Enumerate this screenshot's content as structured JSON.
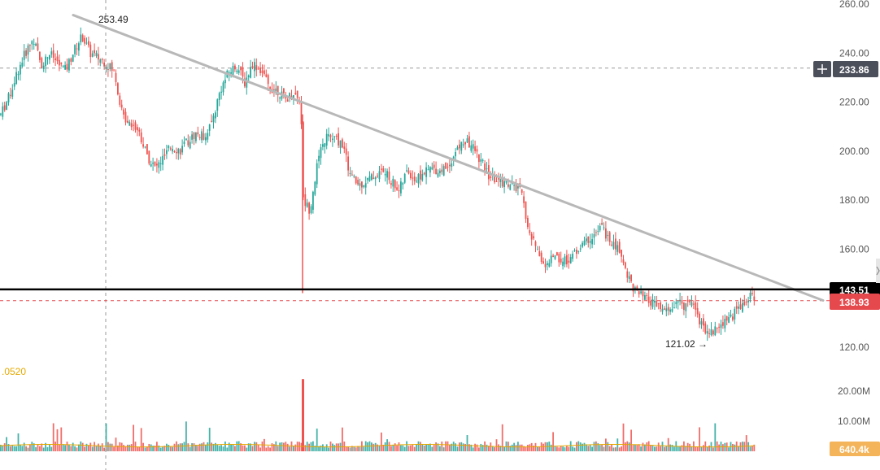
{
  "colors": {
    "up": "#26a69a",
    "down": "#ef5350",
    "trendline": "#b8b8b8",
    "support_line": "#000000",
    "last_price_badge": "#e5484d",
    "crosshair_badge": "#4b4f5a",
    "volume_badge": "#f3b45a",
    "indicator_text": "#e6a900",
    "grid_dash": "#c0c0c0"
  },
  "icons": {
    "crosshair_add": "plus-icon",
    "scroll_handle": "right-chevron-icon"
  },
  "price_axis": {
    "ticks": [
      "260.00",
      "240.00",
      "220.00",
      "200.00",
      "180.00",
      "160.00",
      "140.00",
      "120.00"
    ],
    "tick_values": [
      260,
      240,
      220,
      200,
      180,
      160,
      140,
      120
    ]
  },
  "volume_axis": {
    "ticks": [
      "20.00M",
      "10.00M"
    ],
    "tick_values": [
      20000000,
      10000000
    ]
  },
  "badges": {
    "crosshair_price": "233.86",
    "support_price": "143.51",
    "last_price": "138.93",
    "volume_last": "640.4k"
  },
  "annotations": {
    "high_label": "253.49",
    "low_label": "121.02 →",
    "indicator_value": ".0520"
  },
  "chart_data": {
    "type": "line",
    "title": "",
    "ylabel": "",
    "xlabel": "",
    "ylim": [
      115,
      262
    ],
    "grid": false,
    "series": [
      {
        "style": "candlestick-approx",
        "x": [
          0,
          10,
          20,
          30,
          40,
          50,
          60,
          70,
          80,
          90,
          100,
          110,
          120,
          130,
          140,
          150,
          160,
          170,
          180,
          190,
          200,
          210,
          220,
          230,
          240,
          250,
          260,
          270,
          280,
          290,
          300,
          310,
          320,
          330,
          340,
          350,
          360,
          369,
          372,
          380,
          390,
          400,
          410,
          420,
          430,
          440,
          450,
          460,
          470,
          480,
          490,
          500,
          510,
          520,
          530,
          540,
          550,
          560,
          570,
          580,
          590,
          600,
          610,
          620,
          630,
          640,
          650,
          660,
          670,
          680,
          690,
          700,
          710,
          720,
          730,
          740,
          750,
          760,
          770,
          780,
          790,
          800,
          810,
          820,
          830,
          840,
          850,
          860,
          870,
          880,
          890,
          900,
          910,
          920,
          928
        ],
        "y": [
          215,
          222,
          232,
          240,
          246,
          235,
          240,
          236,
          233,
          241,
          247,
          240,
          238,
          236,
          232,
          214,
          212,
          208,
          198,
          193,
          197,
          202,
          200,
          204,
          207,
          206,
          212,
          225,
          232,
          235,
          228,
          236,
          233,
          226,
          225,
          221,
          224,
          220,
          180,
          176,
          196,
          206,
          205,
          203,
          190,
          186,
          188,
          190,
          192,
          188,
          184,
          192,
          188,
          191,
          193,
          192,
          194,
          200,
          204,
          202,
          196,
          190,
          188,
          187,
          186,
          183,
          166,
          160,
          152,
          158,
          155,
          156,
          160,
          163,
          166,
          169,
          162,
          160,
          150,
          143,
          140,
          138,
          136,
          134,
          138,
          137,
          140,
          130,
          126,
          127,
          131,
          133,
          137,
          140,
          141
        ]
      }
    ],
    "high": 253.49,
    "low": 121.02,
    "trendline": {
      "from": {
        "x": 90,
        "y": 255.5
      },
      "to": {
        "x": 1012,
        "y": 139
      }
    },
    "support_level": 143.51,
    "crosshair_level": 233.86,
    "last_price": 138.93,
    "wick_spike": {
      "x": 372,
      "high": 215,
      "low": 142
    },
    "volume_spike": {
      "x": 372,
      "value": 24000000
    },
    "volume_last": 640400
  }
}
